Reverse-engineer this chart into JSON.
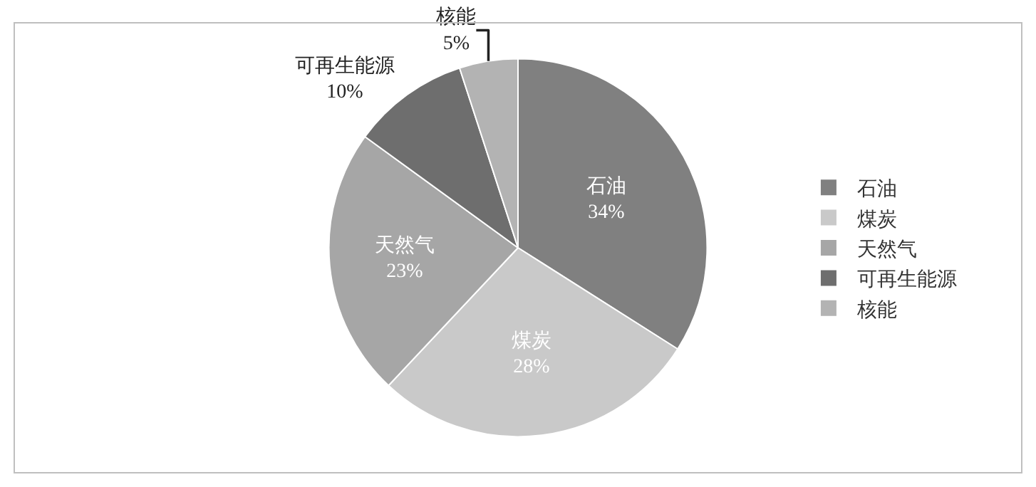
{
  "chart_data": {
    "type": "pie",
    "categories": [
      "石油",
      "煤炭",
      "天然气",
      "可再生能源",
      "核能"
    ],
    "values": [
      34,
      28,
      23,
      10,
      5
    ],
    "value_labels": [
      "34%",
      "28%",
      "23%",
      "10%",
      "5%"
    ],
    "colors": [
      "#808080",
      "#c9c9c9",
      "#a6a6a6",
      "#6e6e6e",
      "#b3b3b3"
    ],
    "legend": "right"
  }
}
